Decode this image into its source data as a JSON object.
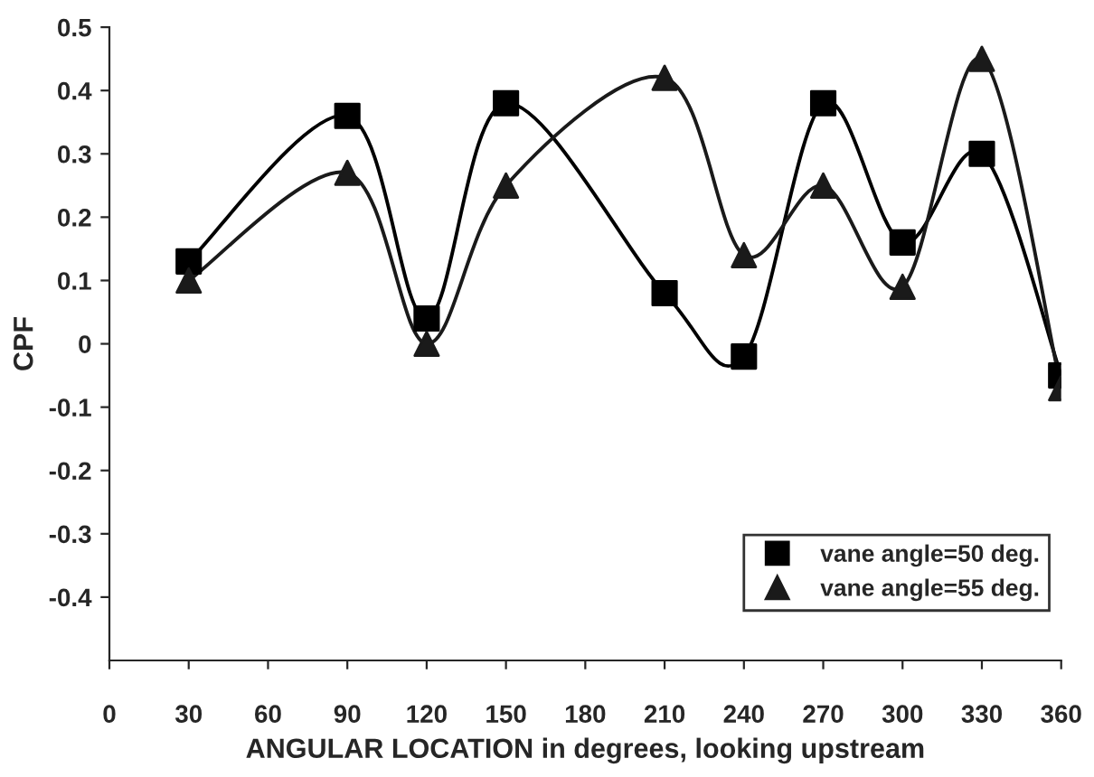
{
  "chart_data": {
    "type": "line",
    "xlabel": "ANGULAR LOCATION in degrees, looking upstream",
    "ylabel": "CPF",
    "x": [
      30,
      90,
      120,
      150,
      210,
      240,
      270,
      300,
      330,
      360
    ],
    "series": [
      {
        "name": "vane angle=50 deg.",
        "color": "#000000",
        "marker": "square",
        "values": [
          0.13,
          0.36,
          0.04,
          0.38,
          0.08,
          -0.02,
          0.38,
          0.16,
          0.3,
          -0.05
        ]
      },
      {
        "name": "vane angle=55 deg.",
        "color": "#1a1a1a",
        "marker": "triangle",
        "values": [
          0.1,
          0.27,
          0.0,
          0.25,
          0.42,
          0.14,
          0.25,
          0.09,
          0.45,
          -0.07
        ]
      }
    ],
    "xlim": [
      0,
      360
    ],
    "xticks": [
      0,
      30,
      60,
      90,
      120,
      150,
      180,
      210,
      240,
      270,
      300,
      330,
      360
    ],
    "ylim": [
      -0.5,
      0.5
    ],
    "yticks": [
      -0.4,
      -0.3,
      -0.2,
      -0.1,
      0,
      0.1,
      0.2,
      0.3,
      0.4,
      0.5
    ],
    "grid": false,
    "legend": "bottom right",
    "line_style": "solid"
  }
}
